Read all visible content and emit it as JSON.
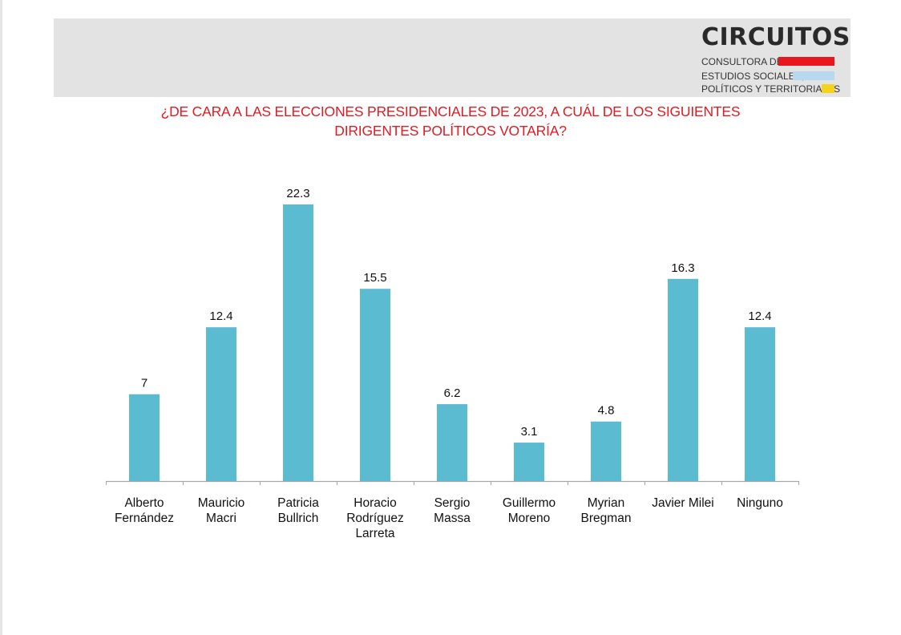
{
  "header": {
    "logo": {
      "name": "CIRCUITOS",
      "lines": [
        "CONSULTORA DE",
        "ESTUDIOS SOCIALES,",
        "POLÍTICOS Y TERRITORIALES"
      ],
      "colors": [
        "#e8161d",
        "#b8d8ef",
        "#f7d21b"
      ]
    }
  },
  "chart_data": {
    "type": "bar",
    "title": [
      "¿DE CARA A LAS ELECCIONES PRESIDENCIALES DE 2023, A CUÁL DE LOS SIGUIENTES",
      "DIRIGENTES POLÍTICOS VOTARÍA?"
    ],
    "categories": [
      [
        "Alberto",
        "Fernández"
      ],
      [
        "Mauricio",
        "Macri"
      ],
      [
        "Patricia",
        "Bullrich"
      ],
      [
        "Horacio",
        "Rodríguez",
        "Larreta"
      ],
      [
        "Sergio",
        "Massa"
      ],
      [
        "Guillermo",
        "Moreno"
      ],
      [
        "Myrian",
        "Bregman"
      ],
      [
        "Javier Milei"
      ],
      [
        "Ninguno"
      ]
    ],
    "values": [
      7,
      12.4,
      22.3,
      15.5,
      6.2,
      3.1,
      4.8,
      16.3,
      12.4
    ],
    "data_labels": [
      "7",
      "12.4",
      "22.3",
      "15.5",
      "6.2",
      "3.1",
      "4.8",
      "16.3",
      "12.4"
    ],
    "ylim": [
      0,
      22.3
    ],
    "grid": false,
    "legend": "none",
    "bar_color": "#5bbcd1",
    "title_color": "#e11b22"
  }
}
